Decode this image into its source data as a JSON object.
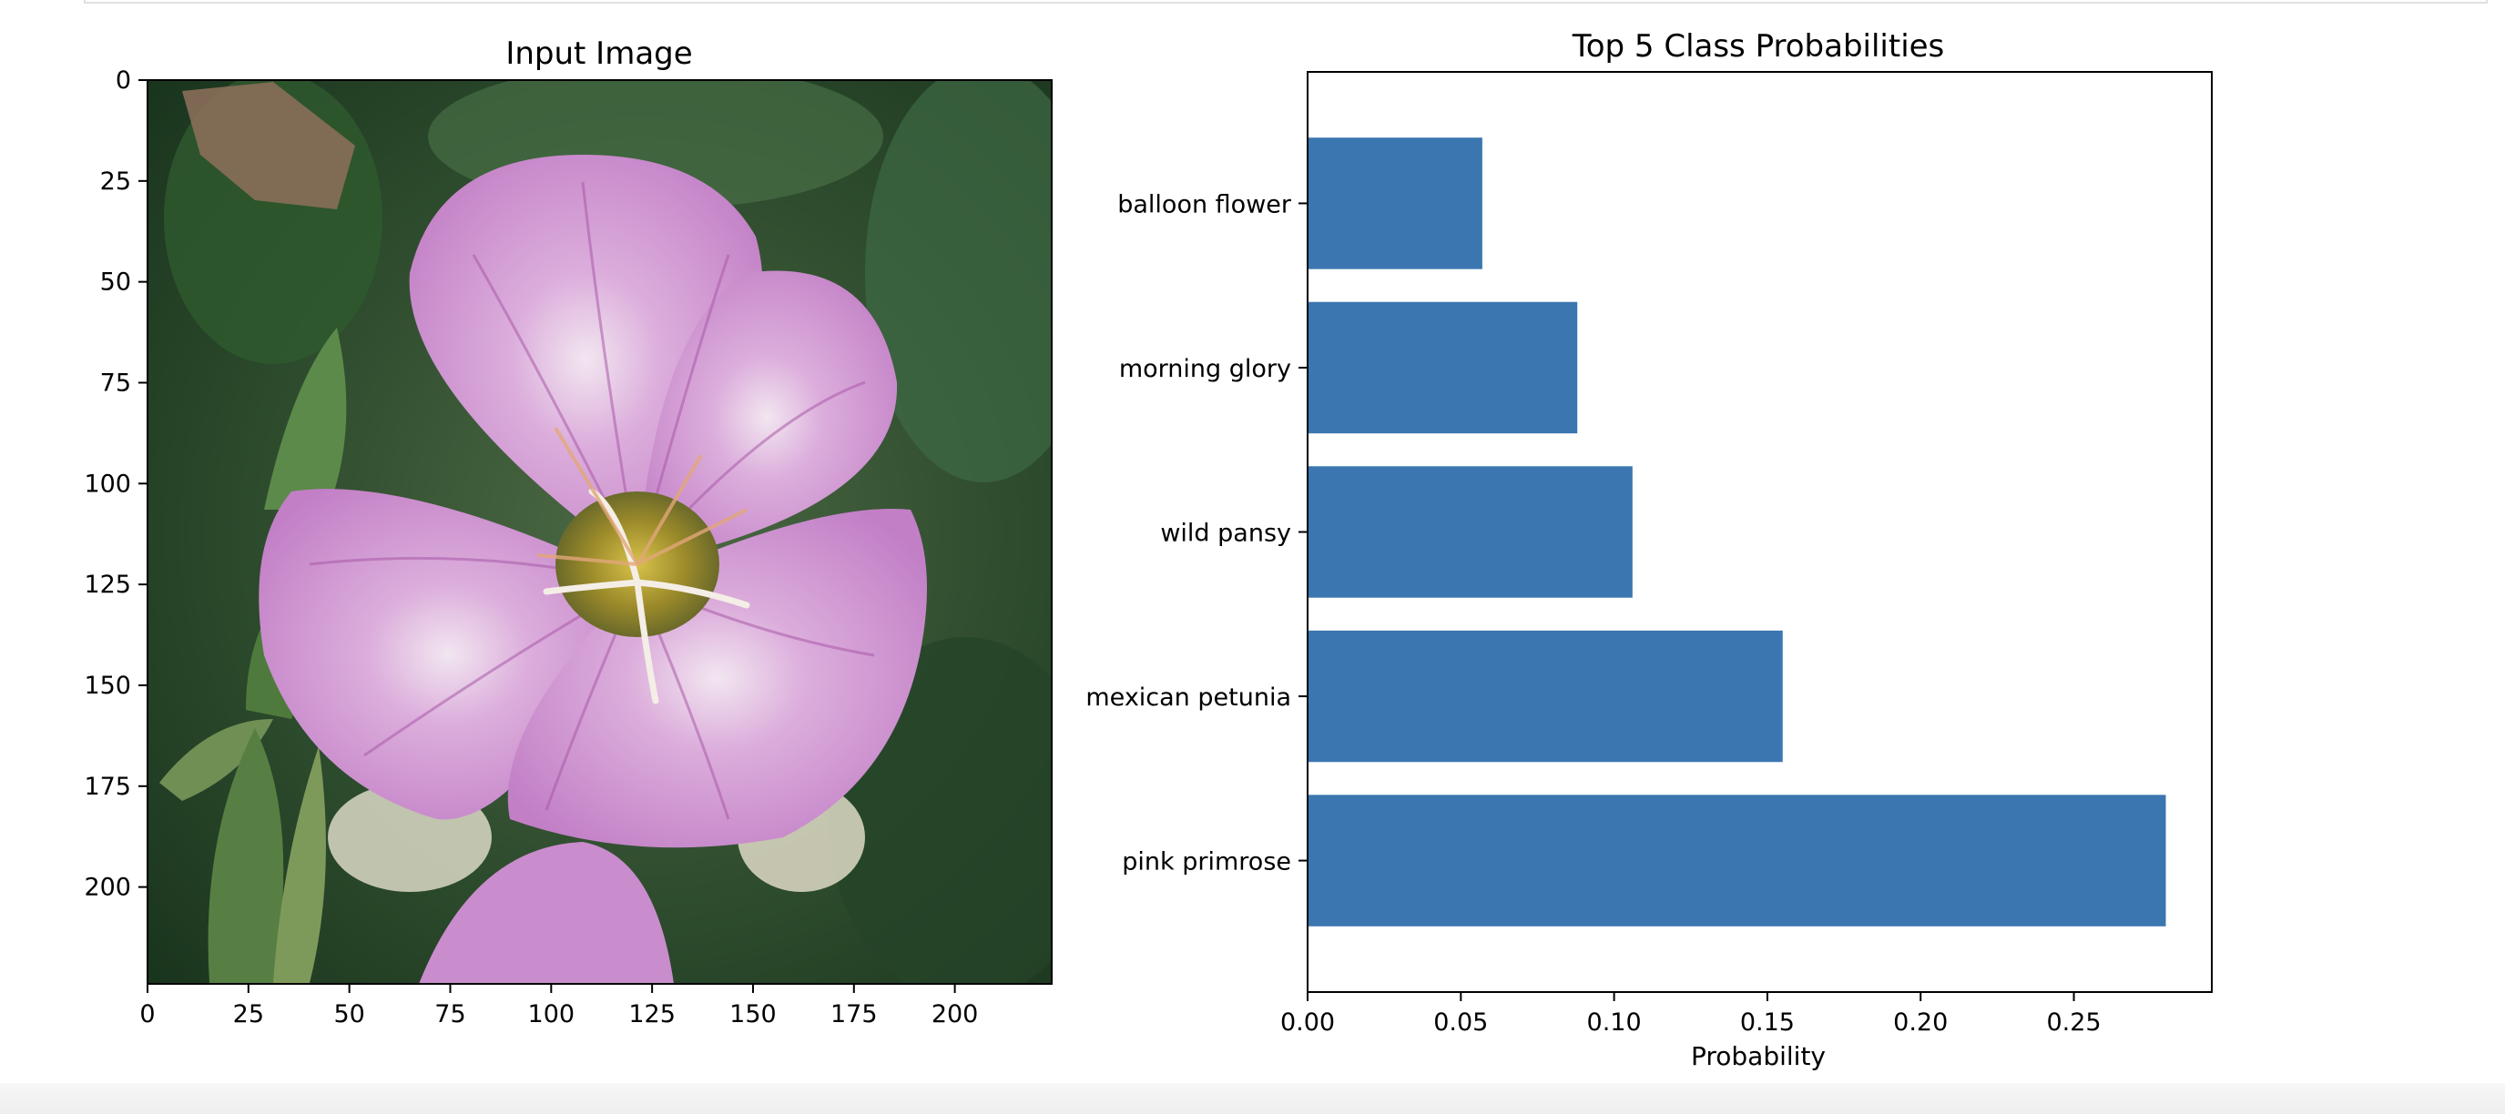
{
  "chart_data": [
    {
      "type": "image",
      "title": "Input Image",
      "image_description": "pink primrose",
      "x_ticks": [
        0,
        25,
        50,
        75,
        100,
        125,
        150,
        175,
        200
      ],
      "y_ticks": [
        0,
        25,
        50,
        75,
        100,
        125,
        150,
        175,
        200
      ],
      "xlim": [
        0,
        224
      ],
      "ylim": [
        224,
        0
      ]
    },
    {
      "type": "bar",
      "orientation": "horizontal",
      "title": "Top 5 Class Probabilities",
      "categories": [
        "pink primrose",
        "mexican petunia",
        "wild pansy",
        "morning glory",
        "balloon flower"
      ],
      "values": [
        0.28,
        0.155,
        0.106,
        0.088,
        0.057
      ],
      "xlabel": "Probability",
      "ylabel": "",
      "xlim": [
        0,
        0.295
      ],
      "x_ticks": [
        "0.00",
        "0.05",
        "0.10",
        "0.15",
        "0.20",
        "0.25"
      ],
      "bar_color": "#3b76b0",
      "grid": false
    }
  ],
  "colors": {
    "bar": "#3b76b0",
    "petal": "#cf93d4",
    "petal_vein": "#a95aa8",
    "foliage_dark": "#1e3a1f",
    "foliage_mid": "#3f6a3a",
    "center": "#b39a2a"
  }
}
